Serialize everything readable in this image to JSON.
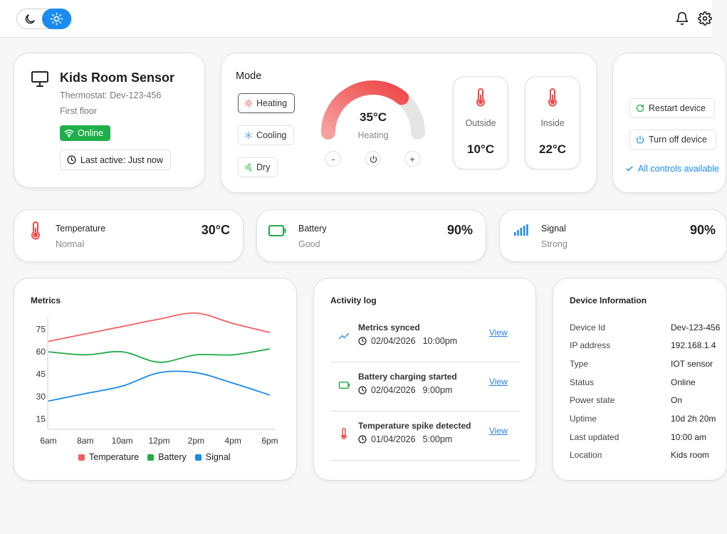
{
  "theme": {
    "active": "light"
  },
  "device": {
    "name": "Kids Room Sensor",
    "thermostat": "Thermostat: Dev-123-456",
    "location": "First floor",
    "status": "Online",
    "last_active": "Last active: Just now"
  },
  "mode": {
    "title": "Mode",
    "options": [
      {
        "label": "Heating",
        "active": true
      },
      {
        "label": "Cooling",
        "active": false
      },
      {
        "label": "Dry",
        "active": false
      }
    ],
    "gauge": {
      "value": "35°C",
      "label": "Heating",
      "fraction": 0.72
    },
    "controls": {
      "minus": "-",
      "plus": "+"
    },
    "outside": {
      "label": "Outside",
      "value": "10°C"
    },
    "inside": {
      "label": "Inside",
      "value": "22°C"
    }
  },
  "controls": {
    "restart": "Restart device",
    "turn_off": "Turn off device",
    "note": "All controls available"
  },
  "stats": [
    {
      "title": "Temperature",
      "sub": "Normal",
      "value": "30°C",
      "icon": "thermometer-icon"
    },
    {
      "title": "Battery",
      "sub": "Good",
      "value": "90%",
      "icon": "battery-icon"
    },
    {
      "title": "Signal",
      "sub": "Strong",
      "value": "90%",
      "icon": "signal-icon"
    }
  ],
  "metrics": {
    "title": "Metrics"
  },
  "chart_data": {
    "type": "line",
    "title": "Metrics",
    "x": [
      "6am",
      "8am",
      "10am",
      "12pm",
      "2pm",
      "4pm",
      "6pm"
    ],
    "yticks": [
      75,
      60,
      45,
      30,
      15
    ],
    "ylim": [
      8,
      83
    ],
    "grid": false,
    "legend_placement": "bottom",
    "series": [
      {
        "name": "Temperature",
        "color": "#f26060",
        "values": [
          67,
          72,
          77,
          82,
          86,
          79,
          73
        ]
      },
      {
        "name": "Battery",
        "color": "#22aa44",
        "values": [
          60,
          58,
          60,
          53,
          58,
          58,
          62
        ]
      },
      {
        "name": "Signal",
        "color": "#1a8ae6",
        "values": [
          27,
          32,
          37,
          46,
          46,
          39,
          31
        ]
      }
    ]
  },
  "activity": {
    "title": "Activity log",
    "items": [
      {
        "title": "Metrics synced",
        "date": "02/04/2026",
        "time": "10:00pm",
        "link": "View",
        "icon": "trend-icon"
      },
      {
        "title": "Battery charging started",
        "date": "02/04/2026",
        "time": "9:00pm",
        "link": "View",
        "icon": "battery-icon"
      },
      {
        "title": "Temperature spike detected",
        "date": "01/04/2026",
        "time": "5:00pm",
        "link": "View",
        "icon": "thermometer-icon"
      }
    ]
  },
  "info": {
    "title": "Device Information",
    "rows": [
      {
        "k": "Device Id",
        "v": "Dev-123-456"
      },
      {
        "k": "IP address",
        "v": "192.168.1.4"
      },
      {
        "k": "Type",
        "v": "IOT sensor"
      },
      {
        "k": "Status",
        "v": "Online"
      },
      {
        "k": "Power state",
        "v": "On"
      },
      {
        "k": "Uptime",
        "v": "10d 2h 20m"
      },
      {
        "k": "Last updated",
        "v": "10:00 am"
      },
      {
        "k": "Location",
        "v": "Kids room"
      }
    ]
  }
}
